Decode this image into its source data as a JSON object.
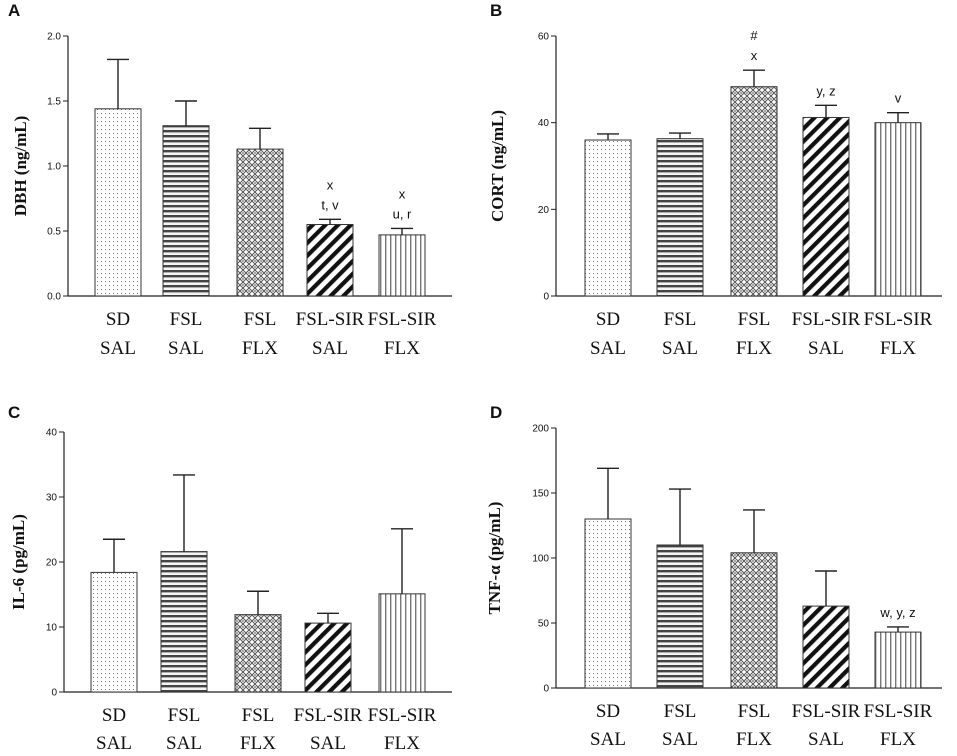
{
  "chart_data": [
    {
      "panel": "A",
      "type": "bar",
      "ylabel": "DBH (ng/mL)",
      "categories": [
        [
          "SD",
          "SAL"
        ],
        [
          "FSL",
          "SAL"
        ],
        [
          "FSL",
          "FLX"
        ],
        [
          "FSL-SIR",
          "SAL"
        ],
        [
          "FSL-SIR",
          "FLX"
        ]
      ],
      "values": [
        1.44,
        1.31,
        1.13,
        0.55,
        0.47
      ],
      "errors": [
        0.38,
        0.19,
        0.16,
        0.04,
        0.05
      ],
      "ylim": [
        0,
        2.0
      ],
      "yticks": [
        "0.0",
        "0.5",
        "1.0",
        "1.5",
        "2.0"
      ],
      "annotations": [
        [],
        [],
        [],
        [
          "x",
          "t, v"
        ],
        [
          "x",
          "u, r"
        ]
      ],
      "patterns": [
        "dots",
        "hlines",
        "diamonds",
        "diag",
        "vlines"
      ]
    },
    {
      "panel": "B",
      "type": "bar",
      "ylabel": "CORT (ng/mL)",
      "categories": [
        [
          "SD",
          "SAL"
        ],
        [
          "FSL",
          "SAL"
        ],
        [
          "FSL",
          "FLX"
        ],
        [
          "FSL-SIR",
          "SAL"
        ],
        [
          "FSL-SIR",
          "FLX"
        ]
      ],
      "values": [
        36,
        36.3,
        48.3,
        41.2,
        40
      ],
      "errors": [
        1.4,
        1.3,
        3.8,
        2.8,
        2.3
      ],
      "ylim": [
        0,
        60
      ],
      "yticks": [
        "0",
        "20",
        "40",
        "60"
      ],
      "annotations": [
        [],
        [],
        [
          "#",
          "x"
        ],
        [
          "y, z"
        ],
        [
          "v"
        ]
      ],
      "patterns": [
        "dots",
        "hlines",
        "diamonds",
        "diag",
        "vlines"
      ]
    },
    {
      "panel": "C",
      "type": "bar",
      "ylabel": "IL-6 (pg/mL)",
      "categories": [
        [
          "SD",
          "SAL"
        ],
        [
          "FSL",
          "SAL"
        ],
        [
          "FSL",
          "FLX"
        ],
        [
          "FSL-SIR",
          "SAL"
        ],
        [
          "FSL-SIR",
          "FLX"
        ]
      ],
      "values": [
        18.4,
        21.6,
        11.9,
        10.6,
        15.1
      ],
      "errors": [
        5.1,
        11.8,
        3.6,
        1.5,
        10.0
      ],
      "ylim": [
        0,
        40
      ],
      "yticks": [
        "0",
        "10",
        "20",
        "30",
        "40"
      ],
      "annotations": [
        [],
        [],
        [],
        [],
        []
      ],
      "patterns": [
        "dots",
        "hlines",
        "diamonds",
        "diag",
        "vlines"
      ]
    },
    {
      "panel": "D",
      "type": "bar",
      "ylabel": "TNF-α (pg/mL)",
      "categories": [
        [
          "SD",
          "SAL"
        ],
        [
          "FSL",
          "SAL"
        ],
        [
          "FSL",
          "FLX"
        ],
        [
          "FSL-SIR",
          "SAL"
        ],
        [
          "FSL-SIR",
          "FLX"
        ]
      ],
      "values": [
        130,
        110,
        104,
        63,
        43
      ],
      "errors": [
        39,
        43,
        33,
        27,
        4
      ],
      "ylim": [
        0,
        200
      ],
      "yticks": [
        "0",
        "50",
        "100",
        "150",
        "200"
      ],
      "annotations": [
        [],
        [],
        [],
        [],
        [
          "w, y, z"
        ]
      ],
      "patterns": [
        "dots",
        "hlines",
        "diamonds",
        "diag",
        "vlines"
      ]
    }
  ]
}
